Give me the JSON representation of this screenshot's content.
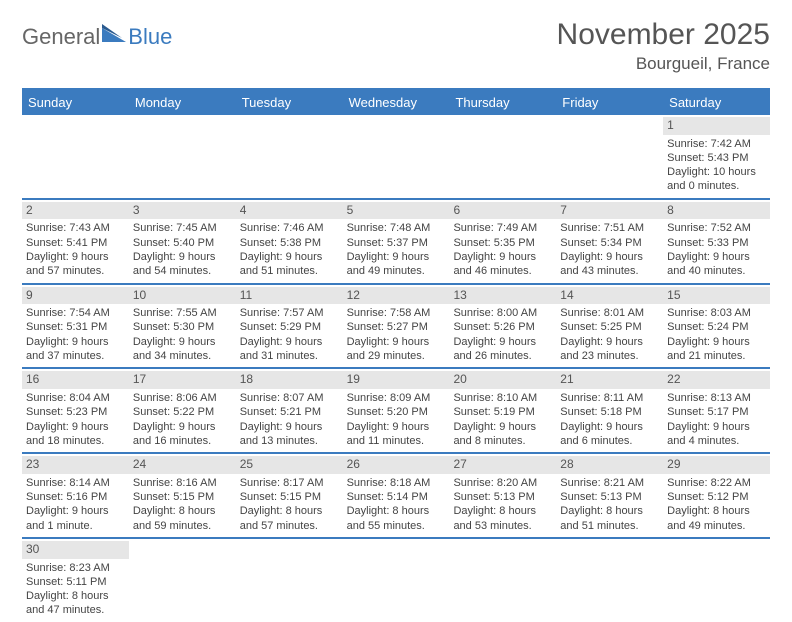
{
  "logo": {
    "word1": "General",
    "word2": "Blue"
  },
  "title": "November 2025",
  "location": "Bourgueil, France",
  "colors": {
    "header_bg": "#3b7bbf",
    "header_text": "#ffffff",
    "daynum_bg": "#e6e6e6",
    "border": "#3b7bbf",
    "text": "#444444"
  },
  "day_headers": [
    "Sunday",
    "Monday",
    "Tuesday",
    "Wednesday",
    "Thursday",
    "Friday",
    "Saturday"
  ],
  "weeks": [
    [
      null,
      null,
      null,
      null,
      null,
      null,
      {
        "n": "1",
        "sr": "Sunrise: 7:42 AM",
        "ss": "Sunset: 5:43 PM",
        "dl": "Daylight: 10 hours and 0 minutes."
      }
    ],
    [
      {
        "n": "2",
        "sr": "Sunrise: 7:43 AM",
        "ss": "Sunset: 5:41 PM",
        "dl": "Daylight: 9 hours and 57 minutes."
      },
      {
        "n": "3",
        "sr": "Sunrise: 7:45 AM",
        "ss": "Sunset: 5:40 PM",
        "dl": "Daylight: 9 hours and 54 minutes."
      },
      {
        "n": "4",
        "sr": "Sunrise: 7:46 AM",
        "ss": "Sunset: 5:38 PM",
        "dl": "Daylight: 9 hours and 51 minutes."
      },
      {
        "n": "5",
        "sr": "Sunrise: 7:48 AM",
        "ss": "Sunset: 5:37 PM",
        "dl": "Daylight: 9 hours and 49 minutes."
      },
      {
        "n": "6",
        "sr": "Sunrise: 7:49 AM",
        "ss": "Sunset: 5:35 PM",
        "dl": "Daylight: 9 hours and 46 minutes."
      },
      {
        "n": "7",
        "sr": "Sunrise: 7:51 AM",
        "ss": "Sunset: 5:34 PM",
        "dl": "Daylight: 9 hours and 43 minutes."
      },
      {
        "n": "8",
        "sr": "Sunrise: 7:52 AM",
        "ss": "Sunset: 5:33 PM",
        "dl": "Daylight: 9 hours and 40 minutes."
      }
    ],
    [
      {
        "n": "9",
        "sr": "Sunrise: 7:54 AM",
        "ss": "Sunset: 5:31 PM",
        "dl": "Daylight: 9 hours and 37 minutes."
      },
      {
        "n": "10",
        "sr": "Sunrise: 7:55 AM",
        "ss": "Sunset: 5:30 PM",
        "dl": "Daylight: 9 hours and 34 minutes."
      },
      {
        "n": "11",
        "sr": "Sunrise: 7:57 AM",
        "ss": "Sunset: 5:29 PM",
        "dl": "Daylight: 9 hours and 31 minutes."
      },
      {
        "n": "12",
        "sr": "Sunrise: 7:58 AM",
        "ss": "Sunset: 5:27 PM",
        "dl": "Daylight: 9 hours and 29 minutes."
      },
      {
        "n": "13",
        "sr": "Sunrise: 8:00 AM",
        "ss": "Sunset: 5:26 PM",
        "dl": "Daylight: 9 hours and 26 minutes."
      },
      {
        "n": "14",
        "sr": "Sunrise: 8:01 AM",
        "ss": "Sunset: 5:25 PM",
        "dl": "Daylight: 9 hours and 23 minutes."
      },
      {
        "n": "15",
        "sr": "Sunrise: 8:03 AM",
        "ss": "Sunset: 5:24 PM",
        "dl": "Daylight: 9 hours and 21 minutes."
      }
    ],
    [
      {
        "n": "16",
        "sr": "Sunrise: 8:04 AM",
        "ss": "Sunset: 5:23 PM",
        "dl": "Daylight: 9 hours and 18 minutes."
      },
      {
        "n": "17",
        "sr": "Sunrise: 8:06 AM",
        "ss": "Sunset: 5:22 PM",
        "dl": "Daylight: 9 hours and 16 minutes."
      },
      {
        "n": "18",
        "sr": "Sunrise: 8:07 AM",
        "ss": "Sunset: 5:21 PM",
        "dl": "Daylight: 9 hours and 13 minutes."
      },
      {
        "n": "19",
        "sr": "Sunrise: 8:09 AM",
        "ss": "Sunset: 5:20 PM",
        "dl": "Daylight: 9 hours and 11 minutes."
      },
      {
        "n": "20",
        "sr": "Sunrise: 8:10 AM",
        "ss": "Sunset: 5:19 PM",
        "dl": "Daylight: 9 hours and 8 minutes."
      },
      {
        "n": "21",
        "sr": "Sunrise: 8:11 AM",
        "ss": "Sunset: 5:18 PM",
        "dl": "Daylight: 9 hours and 6 minutes."
      },
      {
        "n": "22",
        "sr": "Sunrise: 8:13 AM",
        "ss": "Sunset: 5:17 PM",
        "dl": "Daylight: 9 hours and 4 minutes."
      }
    ],
    [
      {
        "n": "23",
        "sr": "Sunrise: 8:14 AM",
        "ss": "Sunset: 5:16 PM",
        "dl": "Daylight: 9 hours and 1 minute."
      },
      {
        "n": "24",
        "sr": "Sunrise: 8:16 AM",
        "ss": "Sunset: 5:15 PM",
        "dl": "Daylight: 8 hours and 59 minutes."
      },
      {
        "n": "25",
        "sr": "Sunrise: 8:17 AM",
        "ss": "Sunset: 5:15 PM",
        "dl": "Daylight: 8 hours and 57 minutes."
      },
      {
        "n": "26",
        "sr": "Sunrise: 8:18 AM",
        "ss": "Sunset: 5:14 PM",
        "dl": "Daylight: 8 hours and 55 minutes."
      },
      {
        "n": "27",
        "sr": "Sunrise: 8:20 AM",
        "ss": "Sunset: 5:13 PM",
        "dl": "Daylight: 8 hours and 53 minutes."
      },
      {
        "n": "28",
        "sr": "Sunrise: 8:21 AM",
        "ss": "Sunset: 5:13 PM",
        "dl": "Daylight: 8 hours and 51 minutes."
      },
      {
        "n": "29",
        "sr": "Sunrise: 8:22 AM",
        "ss": "Sunset: 5:12 PM",
        "dl": "Daylight: 8 hours and 49 minutes."
      }
    ],
    [
      {
        "n": "30",
        "sr": "Sunrise: 8:23 AM",
        "ss": "Sunset: 5:11 PM",
        "dl": "Daylight: 8 hours and 47 minutes."
      },
      null,
      null,
      null,
      null,
      null,
      null
    ]
  ]
}
